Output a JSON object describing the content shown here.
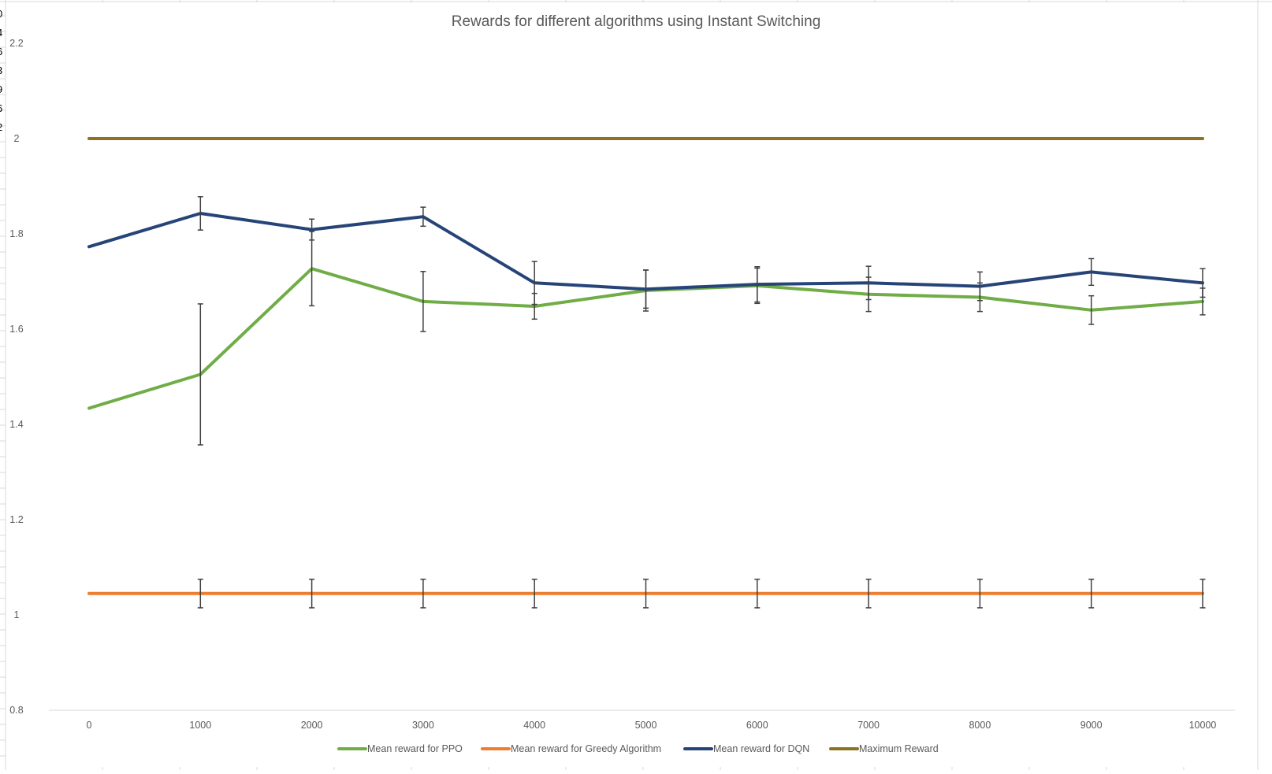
{
  "chart_data": {
    "type": "line",
    "title": "Rewards for different algorithms using Instant Switching",
    "xlabel": "",
    "ylabel": "",
    "x": [
      0,
      1000,
      2000,
      3000,
      4000,
      5000,
      6000,
      7000,
      8000,
      9000,
      10000
    ],
    "x_tick_labels": [
      "0",
      "1000",
      "2000",
      "3000",
      "4000",
      "5000",
      "6000",
      "7000",
      "8000",
      "9000",
      "10000"
    ],
    "y_tick_labels": [
      "0.8",
      "1",
      "1.2",
      "1.4",
      "1.6",
      "1.8",
      "2",
      "2.2"
    ],
    "ylim": [
      0.8,
      2.2
    ],
    "grid": false,
    "legend_position": "bottom",
    "series": [
      {
        "name": "Mean reward for PPO",
        "color": "#70ad47",
        "values": [
          1.434,
          1.505,
          1.727,
          1.658,
          1.648,
          1.681,
          1.691,
          1.673,
          1.667,
          1.64,
          1.658
        ],
        "error": [
          null,
          0.148,
          0.078,
          0.063,
          0.027,
          0.043,
          0.037,
          0.036,
          0.03,
          0.03,
          0.028
        ]
      },
      {
        "name": "Mean reward for Greedy Algorithm",
        "color": "#ed7d31",
        "values": [
          1.045,
          1.045,
          1.045,
          1.045,
          1.045,
          1.045,
          1.045,
          1.045,
          1.045,
          1.045,
          1.045
        ],
        "error": [
          null,
          0.03,
          0.03,
          0.03,
          0.03,
          0.03,
          0.03,
          0.03,
          0.03,
          0.03,
          0.03
        ]
      },
      {
        "name": "Mean reward for DQN",
        "color": "#264478",
        "values": [
          1.773,
          1.843,
          1.809,
          1.836,
          1.697,
          1.684,
          1.694,
          1.697,
          1.69,
          1.72,
          1.697
        ],
        "error": [
          null,
          0.035,
          0.022,
          0.02,
          0.045,
          0.04,
          0.037,
          0.035,
          0.03,
          0.028,
          0.03
        ]
      },
      {
        "name": "Maximum Reward",
        "color": "#8c7321",
        "values": [
          2,
          2,
          2,
          2,
          2,
          2,
          2,
          2,
          2,
          2,
          2
        ],
        "error": null
      }
    ]
  },
  "edge_fragments": [
    "0",
    "4",
    "6",
    "3",
    "9",
    "6",
    "2"
  ]
}
